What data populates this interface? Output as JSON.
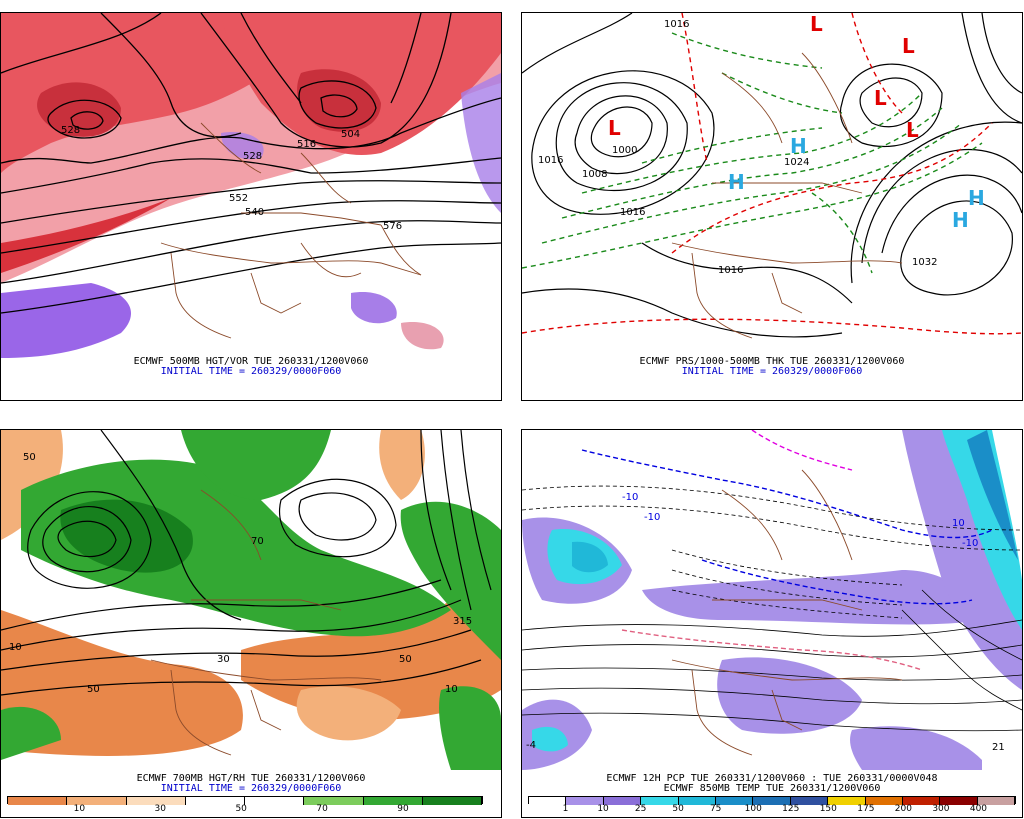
{
  "panels": {
    "top_left": {
      "caption_line1": "ECMWF 500MB HGT/VOR TUE 260331/1200V060",
      "caption_line2": "INITIAL TIME = 260329/0000F060",
      "contour_labels": [
        "516",
        "504",
        "528",
        "552",
        "540",
        "576",
        "528"
      ]
    },
    "top_right": {
      "caption_line1": "ECMWF PRS/1000-500MB THK TUE 260331/1200V060",
      "caption_line2": "INITIAL TIME = 260329/0000F060",
      "contour_labels": [
        "1016",
        "1016",
        "1008",
        "1016",
        "1000",
        "1032",
        "1024",
        "1016"
      ],
      "high_symbol": "H",
      "low_symbol": "L"
    },
    "bottom_left": {
      "caption_line1": "ECMWF 700MB HGT/RH TUE 260331/1200V060",
      "caption_line2": "INITIAL TIME = 260329/0000F060",
      "contour_labels": [
        "50",
        "10",
        "30",
        "70",
        "315",
        "50",
        "10",
        "50"
      ],
      "legend": {
        "labels": [
          "10",
          "30",
          "50",
          "70",
          "90"
        ],
        "colors": [
          "#e8874a",
          "#f3b07a",
          "#fbdcbc",
          "#ffffff",
          "#ffffff",
          "#7ccc5c",
          "#33a833",
          "#17801e"
        ]
      }
    },
    "bottom_right": {
      "caption_line1": "ECMWF 12H PCP TUE 260331/1200V060 : TUE 260331/0000V048",
      "caption_line2": "ECMWF 850MB TEMP TUE 260331/1200V060",
      "contour_labels": [
        "-10",
        "-10",
        "-10",
        "10",
        "-4",
        "21"
      ],
      "legend": {
        "labels": [
          "1",
          "10",
          "25",
          "50",
          "75",
          "100",
          "125",
          "150",
          "175",
          "200",
          "300",
          "400"
        ],
        "colors": [
          "#ffffff",
          "#a891e8",
          "#8a6fd8",
          "#36d8e8",
          "#20b8d8",
          "#1a8ec8",
          "#1c6fb4",
          "#2f50a0",
          "#f0d000",
          "#e07000",
          "#c02000",
          "#8a0000",
          "#c8a0a0"
        ]
      }
    }
  }
}
